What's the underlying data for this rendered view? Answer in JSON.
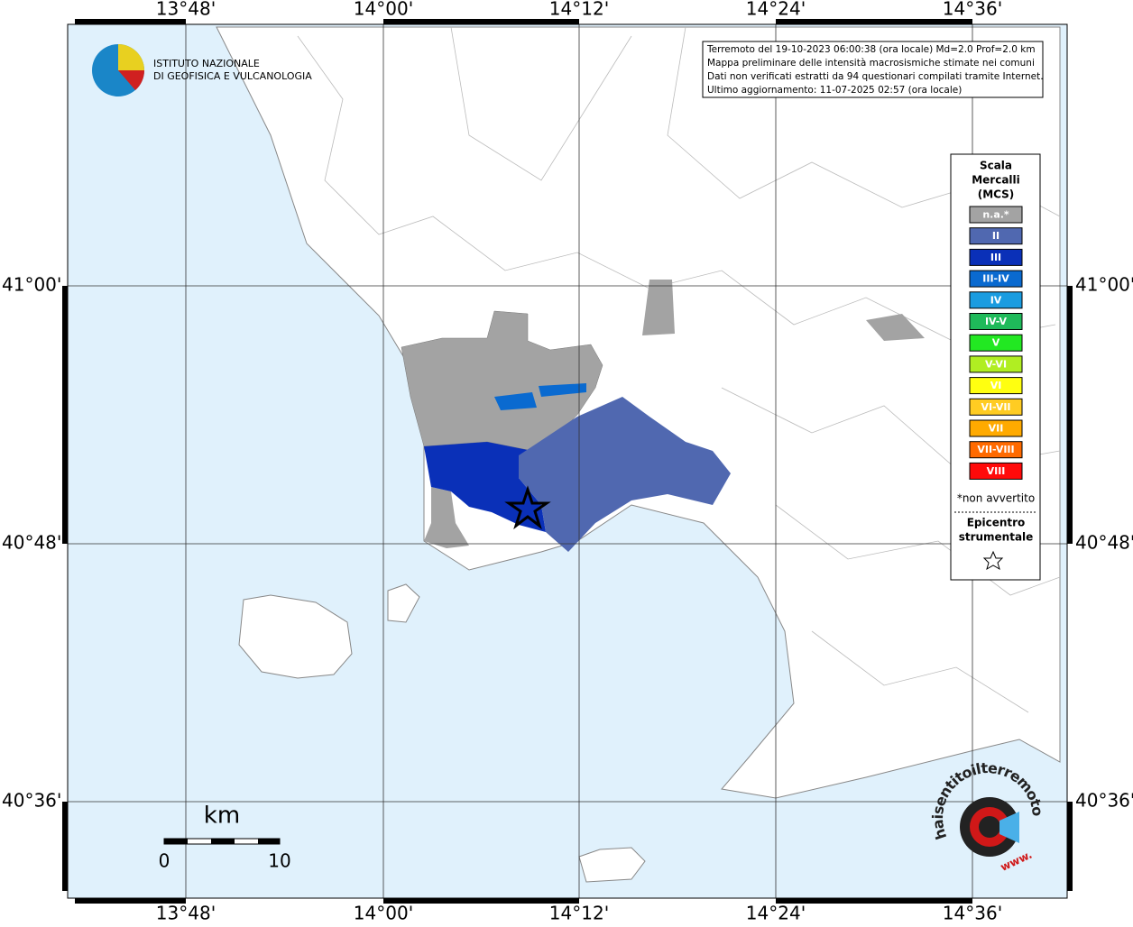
{
  "map": {
    "lon_labels": [
      "13°48'",
      "14°00'",
      "14°12'",
      "14°24'",
      "14°36'"
    ],
    "lat_labels": [
      "41°00'",
      "40°48'",
      "40°36'"
    ],
    "institute": [
      "ISTITUTO NAZIONALE",
      "DI GEOFISICA E VULCANOLOGIA"
    ],
    "info_lines": [
      "Terremoto del 19-10-2023 06:00:38 (ora locale) Md=2.0 Prof=2.0 km",
      "Mappa preliminare delle intensità macrosismiche stimate nei comuni",
      "Dati non verificati estratti da 94 questionari compilati tramite Internet.",
      "Ultimo aggiornamento: 11-07-2025 02:57 (ora locale)"
    ],
    "legend": {
      "title": [
        "Scala",
        "Mercalli",
        "(MCS)"
      ],
      "items": [
        {
          "label": "n.a.*",
          "color": "#a3a3a3"
        },
        {
          "label": "II",
          "color": "#5068b0"
        },
        {
          "label": "III",
          "color": "#0a30b8"
        },
        {
          "label": "III-IV",
          "color": "#0a6ad0"
        },
        {
          "label": "IV",
          "color": "#1a9ce0"
        },
        {
          "label": "IV-V",
          "color": "#1fba5a"
        },
        {
          "label": "V",
          "color": "#22e822"
        },
        {
          "label": "V-VI",
          "color": "#b0ee22"
        },
        {
          "label": "VI",
          "color": "#ffff10"
        },
        {
          "label": "VI-VII",
          "color": "#ffcc22"
        },
        {
          "label": "VII",
          "color": "#ffaa00"
        },
        {
          "label": "VII-VIII",
          "color": "#ff6a00"
        },
        {
          "label": "VIII",
          "color": "#ff0a0a"
        }
      ],
      "note": "*non avvertito",
      "epicenter": [
        "Epicentro",
        "strumentale"
      ]
    },
    "scale": {
      "unit": "km",
      "ticks": [
        "0",
        "10"
      ]
    },
    "badge": {
      "site": "haisentitoilterremoto.it",
      "www": "www."
    }
  }
}
